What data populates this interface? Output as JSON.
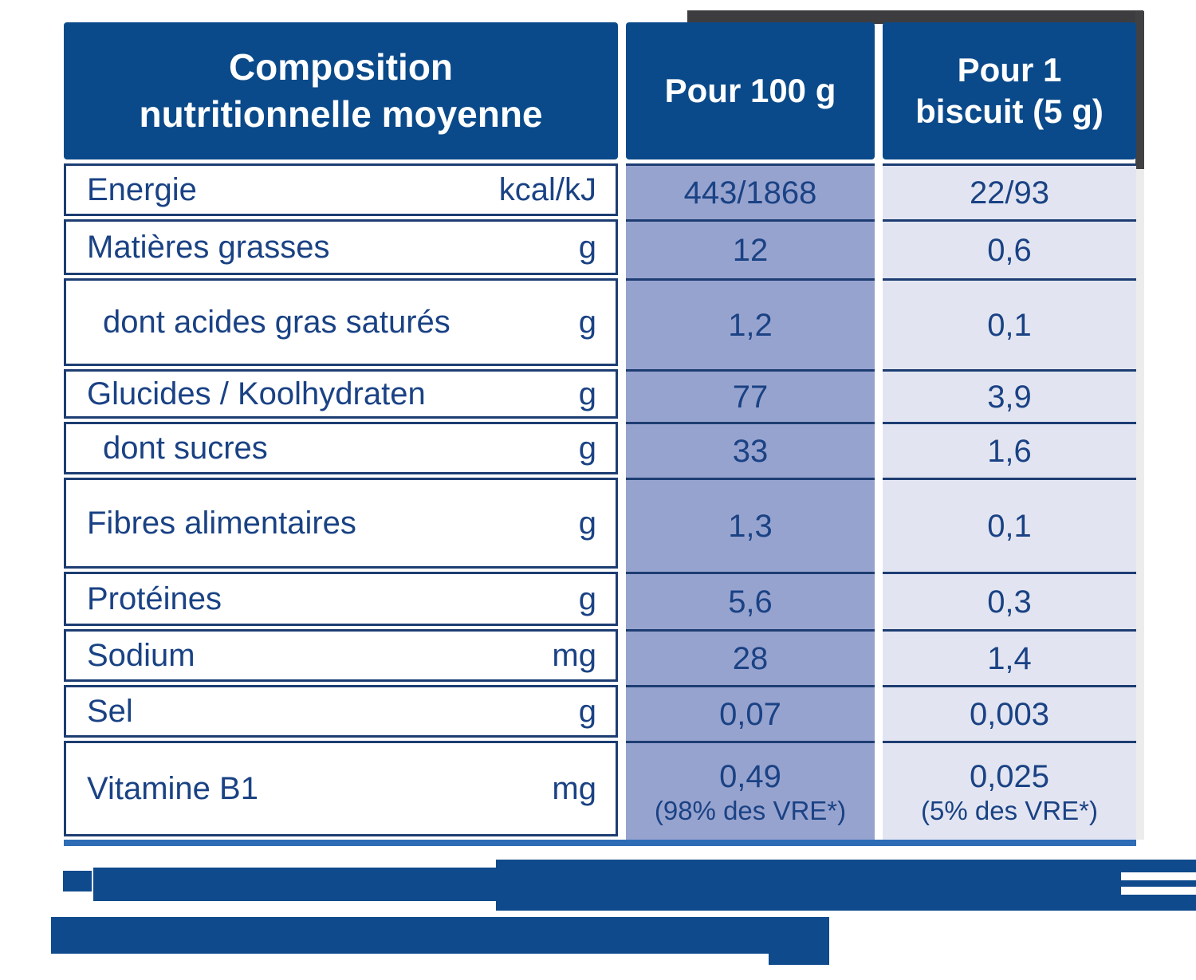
{
  "header": {
    "title": "Composition nutritionnelle moyenne",
    "col_per_100g": "Pour 100 g",
    "col_per_biscuit": "Pour 1 biscuit (5 g)"
  },
  "rows": [
    {
      "label": "Energie",
      "unit": "kcal/kJ",
      "per_100g": "443/1868",
      "per_biscuit": "22/93",
      "sub": false
    },
    {
      "label": "Matières grasses",
      "unit": "g",
      "per_100g": "12",
      "per_biscuit": "0,6",
      "sub": false
    },
    {
      "label": "dont acides gras saturés",
      "unit": "g",
      "per_100g": "1,2",
      "per_biscuit": "0,1",
      "sub": true
    },
    {
      "label": "Glucides / Koolhydraten",
      "unit": "g",
      "per_100g": "77",
      "per_biscuit": "3,9",
      "sub": false
    },
    {
      "label": "dont sucres",
      "unit": "g",
      "per_100g": "33",
      "per_biscuit": "1,6",
      "sub": true
    },
    {
      "label": "Fibres alimentaires",
      "unit": "g",
      "per_100g": "1,3",
      "per_biscuit": "0,1",
      "sub": false
    },
    {
      "label": "Protéines",
      "unit": "g",
      "per_100g": "5,6",
      "per_biscuit": "0,3",
      "sub": false
    },
    {
      "label": "Sodium",
      "unit": "mg",
      "per_100g": "28",
      "per_biscuit": "1,4",
      "sub": false
    },
    {
      "label": "Sel",
      "unit": "g",
      "per_100g": "0,07",
      "per_biscuit": "0,003",
      "sub": false
    },
    {
      "label": "Vitamine B1",
      "unit": "mg",
      "per_100g": "0,49",
      "per_100g_note": "(98% des VRE*)",
      "per_biscuit": "0,025",
      "per_biscuit_note": "(5% des VRE*)",
      "sub": false
    }
  ],
  "footnote": {
    "redacted": true,
    "lines": 2
  },
  "colors": {
    "header_bg": "#0a4a8a",
    "col_100g_bg": "#97a3cf",
    "col_biscuit_bg": "#e2e5f1",
    "text": "#1a4284",
    "divider": "#1d3d72",
    "bottom_bar": "#2e6cb6",
    "redaction": "#0f4a8c"
  }
}
